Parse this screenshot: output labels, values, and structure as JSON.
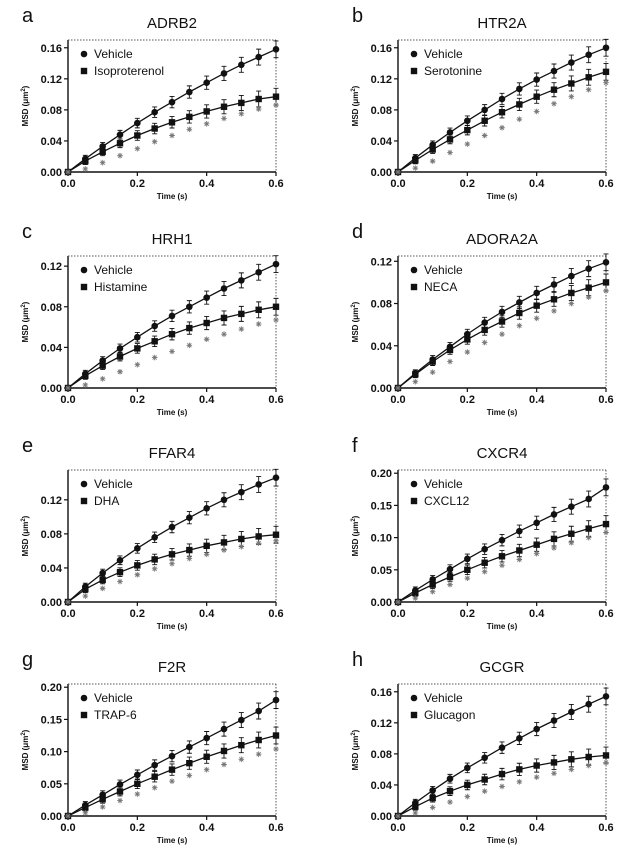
{
  "figure": {
    "xlabel": "Time (s)",
    "ylabel_prefix": "MSD (",
    "ylabel_unit": "μm",
    "ylabel_sup": "2",
    "ylabel_suffix": ")"
  },
  "chart_data": [
    {
      "panel": "a",
      "title": "ADRB2",
      "type": "line",
      "xlim": [
        0,
        0.6
      ],
      "ylim": [
        0,
        0.17
      ],
      "xticks": [
        "0.0",
        "0.2",
        "0.4",
        "0.6"
      ],
      "yticks": [
        "0.00",
        "0.04",
        "0.08",
        "0.12",
        "0.16"
      ],
      "ytick_values": [
        0,
        0.04,
        0.08,
        0.12,
        0.16
      ],
      "x": [
        0,
        0.05,
        0.1,
        0.15,
        0.2,
        0.25,
        0.3,
        0.35,
        0.4,
        0.45,
        0.5,
        0.55,
        0.6
      ],
      "series": [
        {
          "name": "Vehicle",
          "marker": "circle",
          "values": [
            0,
            0.017,
            0.033,
            0.048,
            0.063,
            0.077,
            0.09,
            0.103,
            0.115,
            0.127,
            0.138,
            0.148,
            0.158
          ]
        },
        {
          "name": "Isoproterenol",
          "marker": "square",
          "values": [
            0,
            0.014,
            0.026,
            0.037,
            0.047,
            0.056,
            0.064,
            0.071,
            0.078,
            0.084,
            0.089,
            0.094,
            0.097
          ]
        },
        {
          "name": "",
          "marker": "asterisk",
          "values": [
            0,
            0.004,
            0.012,
            0.021,
            0.03,
            0.039,
            0.047,
            0.055,
            0.062,
            0.069,
            0.075,
            0.081,
            0.086
          ]
        }
      ]
    },
    {
      "panel": "b",
      "title": "HTR2A",
      "type": "line",
      "xlim": [
        0,
        0.6
      ],
      "ylim": [
        0,
        0.17
      ],
      "xticks": [
        "0.0",
        "0.2",
        "0.4",
        "0.6"
      ],
      "yticks": [
        "0.00",
        "0.04",
        "0.08",
        "0.12",
        "0.16"
      ],
      "ytick_values": [
        0,
        0.04,
        0.08,
        0.12,
        0.16
      ],
      "x": [
        0,
        0.05,
        0.1,
        0.15,
        0.2,
        0.25,
        0.3,
        0.35,
        0.4,
        0.45,
        0.5,
        0.55,
        0.6
      ],
      "series": [
        {
          "name": "Vehicle",
          "marker": "circle",
          "values": [
            0,
            0.018,
            0.035,
            0.051,
            0.066,
            0.08,
            0.094,
            0.107,
            0.119,
            0.13,
            0.141,
            0.151,
            0.16
          ]
        },
        {
          "name": "Serotonine",
          "marker": "square",
          "values": [
            0,
            0.015,
            0.029,
            0.042,
            0.054,
            0.066,
            0.077,
            0.087,
            0.097,
            0.106,
            0.114,
            0.122,
            0.129
          ]
        },
        {
          "name": "",
          "marker": "asterisk",
          "values": [
            0,
            0.005,
            0.014,
            0.025,
            0.036,
            0.047,
            0.057,
            0.068,
            0.078,
            0.088,
            0.097,
            0.106,
            0.115
          ]
        }
      ]
    },
    {
      "panel": "c",
      "title": "HRH1",
      "type": "line",
      "xlim": [
        0,
        0.6
      ],
      "ylim": [
        0,
        0.13
      ],
      "xticks": [
        "0.0",
        "0.2",
        "0.4",
        "0.6"
      ],
      "yticks": [
        "0.00",
        "0.04",
        "0.08",
        "0.12"
      ],
      "ytick_values": [
        0,
        0.04,
        0.08,
        0.12
      ],
      "x": [
        0,
        0.05,
        0.1,
        0.15,
        0.2,
        0.25,
        0.3,
        0.35,
        0.4,
        0.45,
        0.5,
        0.55,
        0.6
      ],
      "series": [
        {
          "name": "Vehicle",
          "marker": "circle",
          "values": [
            0,
            0.014,
            0.027,
            0.039,
            0.05,
            0.061,
            0.071,
            0.08,
            0.089,
            0.098,
            0.106,
            0.114,
            0.122
          ]
        },
        {
          "name": "Histamine",
          "marker": "square",
          "values": [
            0,
            0.012,
            0.022,
            0.031,
            0.039,
            0.046,
            0.053,
            0.059,
            0.064,
            0.069,
            0.073,
            0.077,
            0.08
          ]
        },
        {
          "name": "",
          "marker": "asterisk",
          "values": [
            0,
            0.003,
            0.009,
            0.016,
            0.023,
            0.03,
            0.036,
            0.042,
            0.048,
            0.053,
            0.058,
            0.063,
            0.067
          ]
        }
      ]
    },
    {
      "panel": "d",
      "title": "ADORA2A",
      "type": "line",
      "xlim": [
        0,
        0.6
      ],
      "ylim": [
        0,
        0.125
      ],
      "xticks": [
        "0.0",
        "0.2",
        "0.4",
        "0.6"
      ],
      "yticks": [
        "0.00",
        "0.04",
        "0.08",
        "0.12"
      ],
      "ytick_values": [
        0,
        0.04,
        0.08,
        0.12
      ],
      "x": [
        0,
        0.05,
        0.1,
        0.15,
        0.2,
        0.25,
        0.3,
        0.35,
        0.4,
        0.45,
        0.5,
        0.55,
        0.6
      ],
      "series": [
        {
          "name": "Vehicle",
          "marker": "circle",
          "values": [
            0,
            0.014,
            0.027,
            0.039,
            0.051,
            0.062,
            0.072,
            0.081,
            0.09,
            0.098,
            0.106,
            0.113,
            0.119
          ]
        },
        {
          "name": "NECA",
          "marker": "square",
          "values": [
            0,
            0.013,
            0.025,
            0.036,
            0.046,
            0.055,
            0.063,
            0.071,
            0.078,
            0.084,
            0.09,
            0.095,
            0.1
          ]
        },
        {
          "name": "",
          "marker": "asterisk",
          "values": [
            0,
            0.006,
            0.015,
            0.025,
            0.034,
            0.043,
            0.051,
            0.059,
            0.066,
            0.073,
            0.08,
            0.086,
            0.092
          ]
        }
      ]
    },
    {
      "panel": "e",
      "title": "FFAR4",
      "type": "line",
      "xlim": [
        0,
        0.6
      ],
      "ylim": [
        0,
        0.155
      ],
      "xticks": [
        "0.0",
        "0.2",
        "0.4",
        "0.6"
      ],
      "yticks": [
        "0.00",
        "0.04",
        "0.08",
        "0.12"
      ],
      "ytick_values": [
        0,
        0.04,
        0.08,
        0.12
      ],
      "x": [
        0,
        0.05,
        0.1,
        0.15,
        0.2,
        0.25,
        0.3,
        0.35,
        0.4,
        0.45,
        0.5,
        0.55,
        0.6
      ],
      "series": [
        {
          "name": "Vehicle",
          "marker": "circle",
          "values": [
            0,
            0.018,
            0.034,
            0.049,
            0.063,
            0.076,
            0.088,
            0.099,
            0.11,
            0.12,
            0.129,
            0.138,
            0.146
          ]
        },
        {
          "name": "DHA",
          "marker": "square",
          "values": [
            0,
            0.015,
            0.026,
            0.035,
            0.043,
            0.05,
            0.056,
            0.061,
            0.066,
            0.07,
            0.074,
            0.077,
            0.079
          ]
        },
        {
          "name": "",
          "marker": "asterisk",
          "values": [
            0,
            0.007,
            0.016,
            0.024,
            0.032,
            0.039,
            0.045,
            0.051,
            0.056,
            0.061,
            0.065,
            0.069,
            0.072
          ]
        }
      ]
    },
    {
      "panel": "f",
      "title": "CXCR4",
      "type": "line",
      "xlim": [
        0,
        0.6
      ],
      "ylim": [
        0,
        0.205
      ],
      "xticks": [
        "0.0",
        "0.2",
        "0.4",
        "0.6"
      ],
      "yticks": [
        "0.00",
        "0.05",
        "0.10",
        "0.15",
        "0.20"
      ],
      "ytick_values": [
        0,
        0.05,
        0.1,
        0.15,
        0.2
      ],
      "x": [
        0,
        0.05,
        0.1,
        0.15,
        0.2,
        0.25,
        0.3,
        0.35,
        0.4,
        0.45,
        0.5,
        0.55,
        0.6
      ],
      "series": [
        {
          "name": "Vehicle",
          "marker": "circle",
          "values": [
            0,
            0.018,
            0.035,
            0.051,
            0.067,
            0.082,
            0.096,
            0.11,
            0.123,
            0.136,
            0.148,
            0.16,
            0.178
          ]
        },
        {
          "name": "CXCL12",
          "marker": "square",
          "values": [
            0,
            0.014,
            0.027,
            0.039,
            0.05,
            0.061,
            0.071,
            0.08,
            0.089,
            0.098,
            0.106,
            0.114,
            0.121
          ]
        },
        {
          "name": "",
          "marker": "asterisk",
          "values": [
            0,
            0.006,
            0.016,
            0.027,
            0.037,
            0.047,
            0.057,
            0.066,
            0.075,
            0.084,
            0.092,
            0.1,
            0.108
          ]
        }
      ]
    },
    {
      "panel": "g",
      "title": "F2R",
      "type": "line",
      "xlim": [
        0,
        0.6
      ],
      "ylim": [
        0,
        0.205
      ],
      "xticks": [
        "0.0",
        "0.2",
        "0.4",
        "0.6"
      ],
      "yticks": [
        "0.00",
        "0.05",
        "0.10",
        "0.15",
        "0.20"
      ],
      "ytick_values": [
        0,
        0.05,
        0.1,
        0.15,
        0.2
      ],
      "x": [
        0,
        0.05,
        0.1,
        0.15,
        0.2,
        0.25,
        0.3,
        0.35,
        0.4,
        0.45,
        0.5,
        0.55,
        0.6
      ],
      "series": [
        {
          "name": "Vehicle",
          "marker": "circle",
          "values": [
            0,
            0.017,
            0.033,
            0.049,
            0.064,
            0.079,
            0.093,
            0.107,
            0.121,
            0.135,
            0.149,
            0.163,
            0.18
          ]
        },
        {
          "name": "TRAP-6",
          "marker": "square",
          "values": [
            0,
            0.013,
            0.026,
            0.038,
            0.05,
            0.061,
            0.072,
            0.082,
            0.092,
            0.101,
            0.11,
            0.118,
            0.125
          ]
        },
        {
          "name": "",
          "marker": "asterisk",
          "values": [
            0,
            0.005,
            0.014,
            0.024,
            0.034,
            0.044,
            0.054,
            0.063,
            0.072,
            0.08,
            0.088,
            0.096,
            0.104
          ]
        }
      ]
    },
    {
      "panel": "h",
      "title": "GCGR",
      "type": "line",
      "xlim": [
        0,
        0.6
      ],
      "ylim": [
        0,
        0.17
      ],
      "xticks": [
        "0.0",
        "0.2",
        "0.4",
        "0.6"
      ],
      "yticks": [
        "0.00",
        "0.04",
        "0.08",
        "0.12",
        "0.16"
      ],
      "ytick_values": [
        0,
        0.04,
        0.08,
        0.12,
        0.16
      ],
      "x": [
        0,
        0.05,
        0.1,
        0.15,
        0.2,
        0.25,
        0.3,
        0.35,
        0.4,
        0.45,
        0.5,
        0.55,
        0.6
      ],
      "series": [
        {
          "name": "Vehicle",
          "marker": "circle",
          "values": [
            0,
            0.017,
            0.033,
            0.048,
            0.062,
            0.075,
            0.088,
            0.1,
            0.112,
            0.123,
            0.134,
            0.144,
            0.154
          ]
        },
        {
          "name": "Glucagon",
          "marker": "square",
          "values": [
            0,
            0.012,
            0.023,
            0.032,
            0.04,
            0.047,
            0.054,
            0.06,
            0.065,
            0.069,
            0.073,
            0.076,
            0.078
          ]
        },
        {
          "name": "",
          "marker": "asterisk",
          "values": [
            0,
            0.004,
            0.011,
            0.018,
            0.025,
            0.032,
            0.038,
            0.044,
            0.05,
            0.055,
            0.06,
            0.065,
            0.069
          ]
        }
      ]
    }
  ]
}
